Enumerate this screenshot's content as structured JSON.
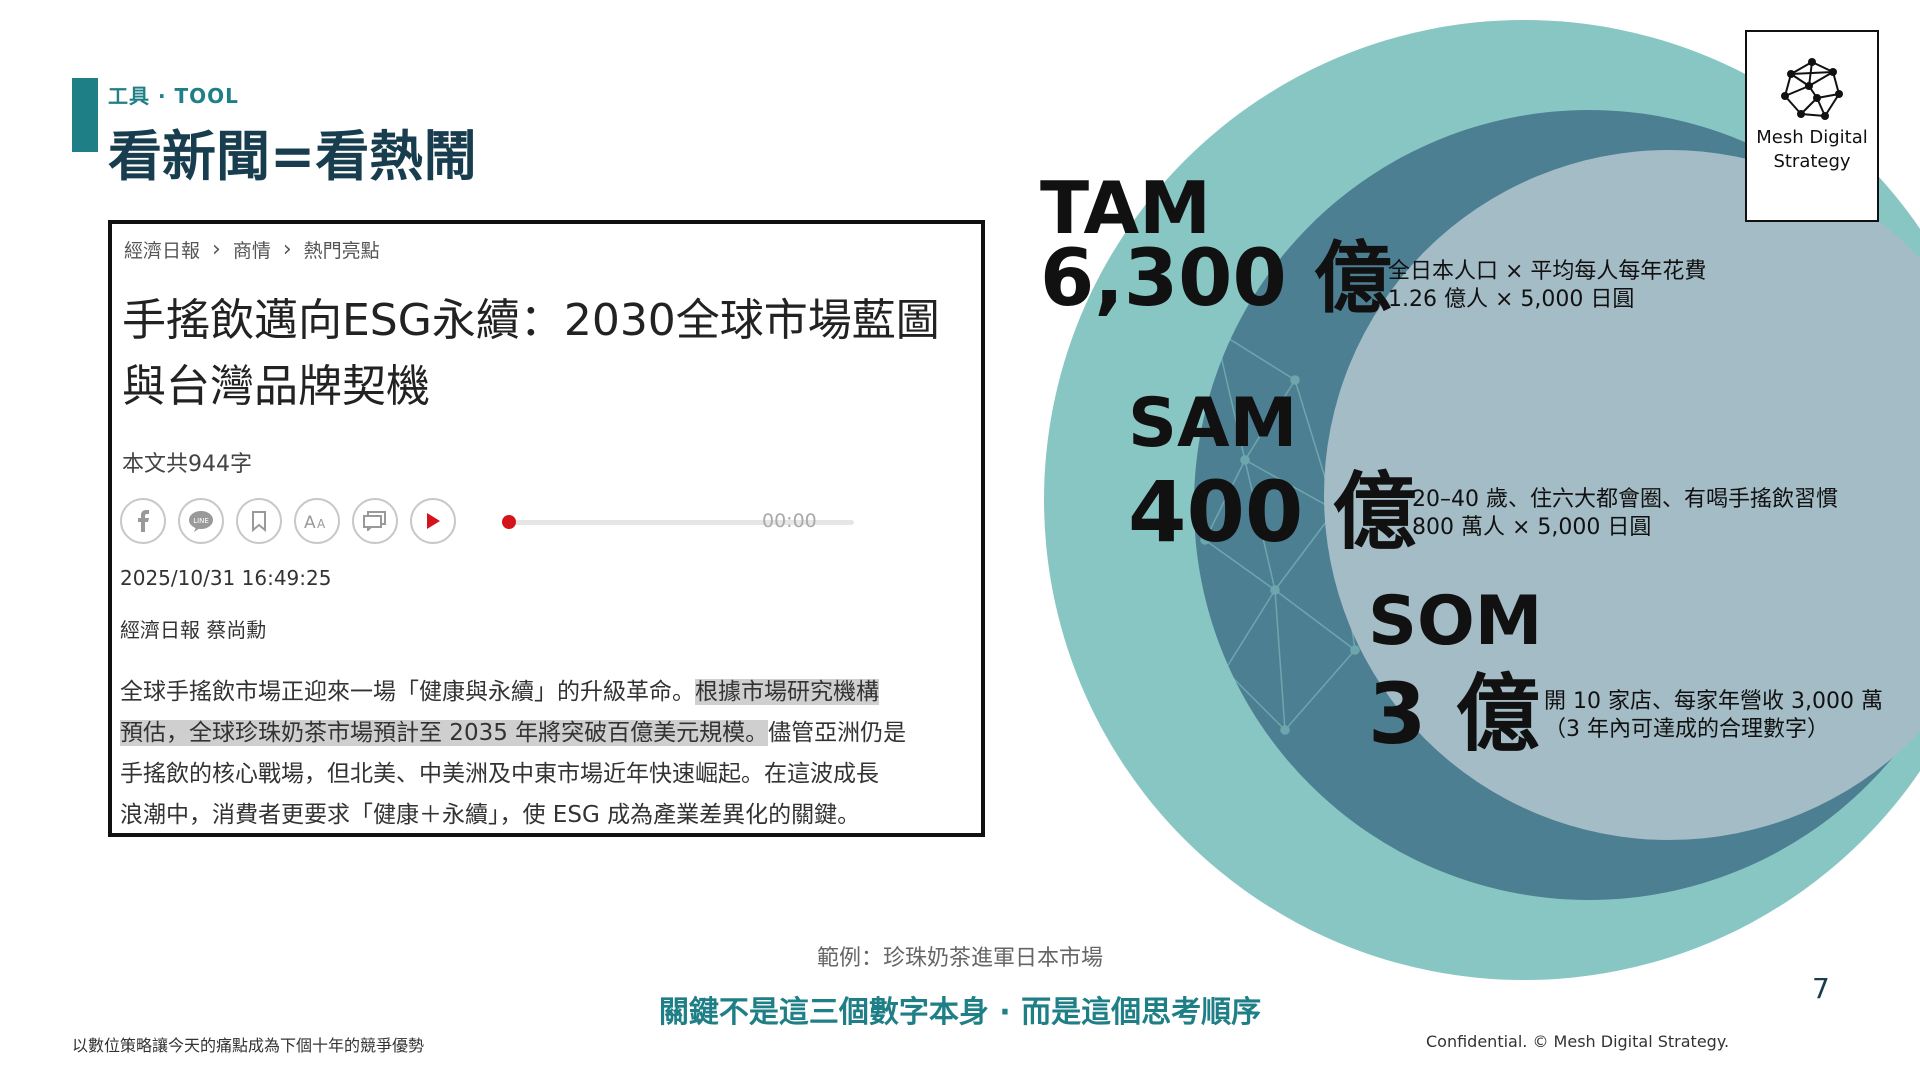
{
  "header": {
    "section_label": "工具 · TOOL",
    "title": "看新聞=看熱鬧"
  },
  "news": {
    "breadcrumb": [
      "經濟日報",
      "商情",
      "熱門亮點"
    ],
    "headline_line1": "手搖飲邁向ESG永續：2030全球市場藍圖",
    "headline_line2": "與台灣品牌契機",
    "word_count": "本文共944字",
    "share_icons": [
      "facebook-icon",
      "line-icon",
      "bookmark-icon",
      "font-size-icon",
      "comment-icon",
      "play-icon"
    ],
    "audio_time": "00:00",
    "audio_progress": 0,
    "date": "2025/10/31 16:49:25",
    "byline": "經濟日報 蔡尚勳",
    "body": {
      "line1_plain": "全球手搖飲市場正迎來一場「健康與永續」的升級革命。",
      "line1_highlight": "根據市場研究機構",
      "line2_highlight": "預估，全球珍珠奶茶市場預計至 2035 年將突破百億美元規模。",
      "line2_plain": "儘管亞洲仍是",
      "line3": "手搖飲的核心戰場，但北美、中美洲及中東市場近年快速崛起。在這波成長",
      "line4": "浪潮中，消費者更要求「健康＋永續」，使 ESG 成為產業差異化的關鍵。"
    }
  },
  "market": {
    "tam": {
      "label": "TAM",
      "value": "6,300 億",
      "desc1": "全日本人口 × 平均每人每年花費",
      "desc2": "1.26 億人 × 5,000 日圓",
      "color": "#88c6c3"
    },
    "sam": {
      "label": "SAM",
      "value": "400 億",
      "desc1": "20–40 歲、住六大都會圈、有喝手搖飲習慣",
      "desc2": "800 萬人 × 5,000 日圓",
      "color": "#4d7f93"
    },
    "som": {
      "label": "SOM",
      "value": "3 億",
      "desc1": "開 10 家店、每家年營收 3,000 萬",
      "desc2": "（3 年內可達成的合理數字）",
      "color": "#a4bcc6"
    }
  },
  "logo": {
    "line1": "Mesh Digital",
    "line2": "Strategy",
    "icon": "mesh-network-icon"
  },
  "footer": {
    "example_caption": "範例：珍珠奶茶進軍日本市場",
    "key_message": "關鍵不是這三個數字本身 · 而是這個思考順序",
    "page_number": "7",
    "left_tagline": "以數位策略讓今天的痛點成為下個十年的競爭優勢",
    "confidential": "Confidential. © Mesh Digital Strategy."
  },
  "colors": {
    "accent": "#1f7f86",
    "title": "#173d4e",
    "play_red": "#d3141b"
  }
}
